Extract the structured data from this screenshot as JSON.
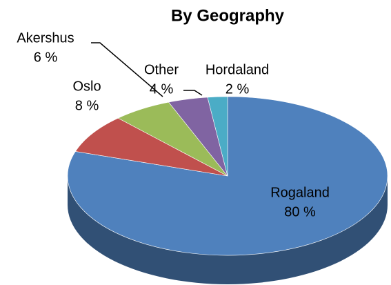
{
  "chart_data": {
    "type": "pie",
    "title": "By Geography",
    "categories": [
      "Rogaland",
      "Oslo",
      "Akershus",
      "Other",
      "Hordaland"
    ],
    "values": [
      80,
      8,
      6,
      4,
      2
    ],
    "value_labels": [
      "80 %",
      "8 %",
      "6 %",
      "4 %",
      "2 %"
    ],
    "colors": [
      "#4f81bd",
      "#c0504d",
      "#9bbb59",
      "#8064a2",
      "#4bacc6"
    ]
  }
}
